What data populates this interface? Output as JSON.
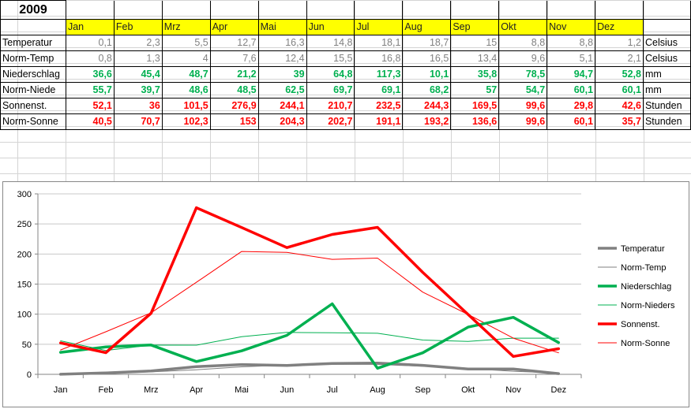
{
  "sheet": {
    "year": "2009",
    "months": [
      "Jan",
      "Feb",
      "Mrz",
      "Apr",
      "Mai",
      "Jun",
      "Jul",
      "Aug",
      "Sep",
      "Okt",
      "Nov",
      "Dez"
    ],
    "rows": [
      {
        "label": "Temperatur",
        "values": [
          "0,1",
          "2,3",
          "5,5",
          "12,7",
          "16,3",
          "14,8",
          "18,1",
          "18,7",
          "15",
          "8,8",
          "8,8",
          "1,2"
        ],
        "unit": "Celsius",
        "color": "#808080"
      },
      {
        "label": "Norm-Temp",
        "values": [
          "0,8",
          "1,3",
          "4",
          "7,6",
          "12,4",
          "15,5",
          "16,8",
          "16,5",
          "13,4",
          "9,6",
          "5,1",
          "2,1"
        ],
        "unit": "Celsius",
        "color": "#808080"
      },
      {
        "label": "Niederschlag",
        "values": [
          "36,6",
          "45,4",
          "48,7",
          "21,2",
          "39",
          "64,8",
          "117,3",
          "10,1",
          "35,8",
          "78,5",
          "94,7",
          "52,8"
        ],
        "unit": "mm",
        "color": "#00b050"
      },
      {
        "label": "Norm-Niede",
        "values": [
          "55,7",
          "39,7",
          "48,6",
          "48,5",
          "62,5",
          "69,7",
          "69,1",
          "68,2",
          "57",
          "54,7",
          "60,1",
          "60,1"
        ],
        "unit": "mm",
        "color": "#00b050"
      },
      {
        "label": "Sonnenst.",
        "values": [
          "52,1",
          "36",
          "101,5",
          "276,9",
          "244,1",
          "210,7",
          "232,5",
          "244,3",
          "169,5",
          "99,6",
          "29,8",
          "42,6"
        ],
        "unit": "Stunden",
        "color": "#ff0000"
      },
      {
        "label": "Norm-Sonne",
        "values": [
          "40,5",
          "70,7",
          "102,3",
          "153",
          "204,3",
          "202,7",
          "191,1",
          "193,2",
          "136,6",
          "99,6",
          "60,1",
          "35,7"
        ],
        "unit": "Stunden",
        "color": "#ff0000"
      }
    ]
  },
  "chart_data": {
    "type": "line",
    "categories": [
      "Jan",
      "Feb",
      "Mrz",
      "Apr",
      "Mai",
      "Jun",
      "Jul",
      "Aug",
      "Sep",
      "Okt",
      "Nov",
      "Dez"
    ],
    "ylim": [
      0,
      300
    ],
    "yticks": [
      0,
      50,
      100,
      150,
      200,
      250,
      300
    ],
    "grid": true,
    "legend": "right",
    "series": [
      {
        "name": "Temperatur",
        "values": [
          0.1,
          2.3,
          5.5,
          12.7,
          16.3,
          14.8,
          18.1,
          18.7,
          15,
          8.8,
          8.8,
          1.2
        ],
        "color": "#808080",
        "width": "thick"
      },
      {
        "name": "Norm-Temp",
        "values": [
          0.8,
          1.3,
          4,
          7.6,
          12.4,
          15.5,
          16.8,
          16.5,
          13.4,
          9.6,
          5.1,
          2.1
        ],
        "color": "#808080",
        "width": "thin"
      },
      {
        "name": "Niederschlag",
        "values": [
          36.6,
          45.4,
          48.7,
          21.2,
          39,
          64.8,
          117.3,
          10.1,
          35.8,
          78.5,
          94.7,
          52.8
        ],
        "color": "#00b050",
        "width": "thick"
      },
      {
        "name": "Norm-Nieders",
        "values": [
          55.7,
          39.7,
          48.6,
          48.5,
          62.5,
          69.7,
          69.1,
          68.2,
          57,
          54.7,
          60.1,
          60.1
        ],
        "color": "#00b050",
        "width": "thin"
      },
      {
        "name": "Sonnenst.",
        "values": [
          52.1,
          36,
          101.5,
          276.9,
          244.1,
          210.7,
          232.5,
          244.3,
          169.5,
          99.6,
          29.8,
          42.6
        ],
        "color": "#ff0000",
        "width": "thick"
      },
      {
        "name": "Norm-Sonne",
        "values": [
          40.5,
          70.7,
          102.3,
          153,
          204.3,
          202.7,
          191.1,
          193.2,
          136.6,
          99.6,
          60.1,
          35.7
        ],
        "color": "#ff0000",
        "width": "thin"
      }
    ]
  }
}
